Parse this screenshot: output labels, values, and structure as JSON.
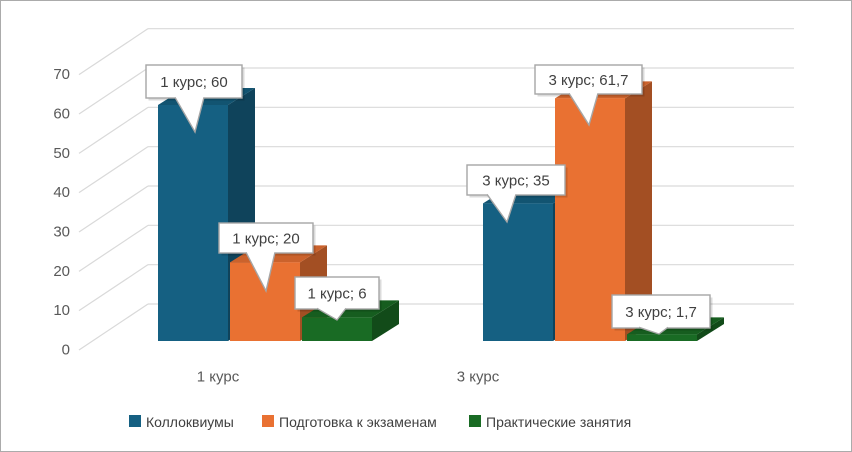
{
  "chart_data": {
    "type": "bar",
    "subtype": "3d_clustered_column",
    "categories": [
      "1 курс",
      "3 курс"
    ],
    "series": [
      {
        "name": "Коллоквиумы",
        "color": "#156082",
        "values": [
          60,
          35
        ]
      },
      {
        "name": "Подготовка к экзаменам",
        "color": "#E97132",
        "values": [
          20,
          61.7
        ]
      },
      {
        "name": "Практические занятия",
        "color": "#196B24",
        "values": [
          6,
          1.7
        ]
      }
    ],
    "data_labels": [
      "1 курс; 60",
      "1 курс; 20",
      "1 курс; 6",
      "3 курс; 35",
      "3 курс; 61,7",
      "3 курс; 1,7"
    ],
    "y_ticks": [
      0,
      10,
      20,
      30,
      40,
      50,
      60,
      70
    ],
    "ylim": [
      0,
      70
    ],
    "grid": true,
    "legend_position": "bottom",
    "colors": {
      "gridline": "#D9D9D9",
      "axis_text": "#595959",
      "label_text": "#404040",
      "callout_border": "#A6A6A6",
      "callout_fill": "#FFFFFF",
      "frame_border": "#ABABAB",
      "background": "#FFFFFF"
    }
  }
}
